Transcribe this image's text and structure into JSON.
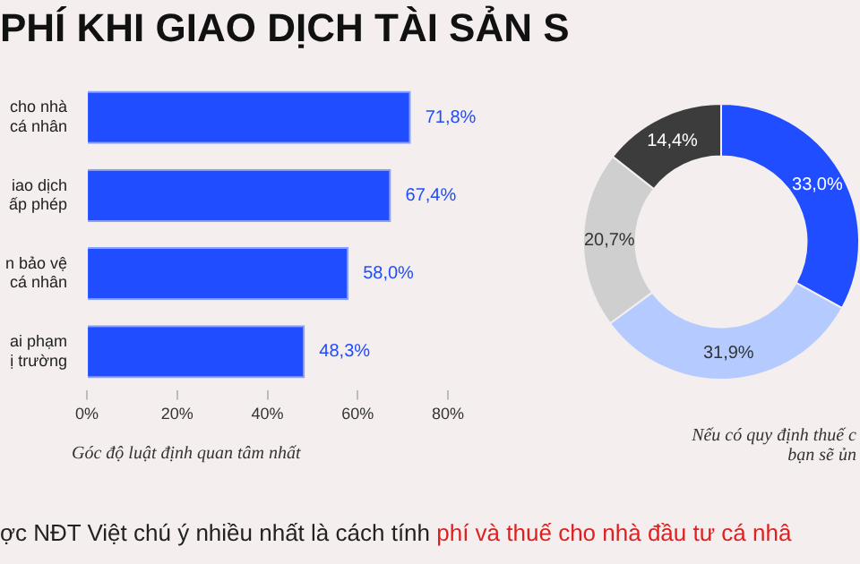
{
  "chart_data": [
    {
      "type": "bar",
      "orientation": "horizontal",
      "title": "PHÍ KHI GIAO DỊCH TÀI SẢN S",
      "categories": [
        "cho nhà\ncá nhân",
        "iao dịch\nấp phép",
        "n bảo vệ\ncá nhân",
        "ai phạm\nị trường"
      ],
      "values": [
        71.8,
        67.4,
        58.0,
        48.3
      ],
      "color": "#1f4dff",
      "value_labels": [
        "71,8%",
        "67,4%",
        "58,0%",
        "48,3%"
      ],
      "xlim": [
        0,
        80
      ],
      "xticks": [
        {
          "value": 0,
          "label": "0%"
        },
        {
          "value": 20,
          "label": "20%"
        },
        {
          "value": 40,
          "label": "40%"
        },
        {
          "value": 60,
          "label": "60%"
        },
        {
          "value": 80,
          "label": "80%"
        }
      ],
      "grid": false,
      "legend": false,
      "annotations": [
        "Góc độ luật định quan tâm nhất",
        "ợc NĐT Việt chú ý nhiều nhất là cách tính ",
        "phí và thuế cho nhà đầu tư cá nhâ"
      ]
    },
    {
      "type": "donut",
      "categories": [
        null,
        null,
        null,
        null
      ],
      "values": [
        33.0,
        31.9,
        20.7,
        14.4
      ],
      "colors": [
        "#1f4dff",
        "#b5cbff",
        "#cfcfcf",
        "#3c3c3c"
      ],
      "value_labels": [
        "33,0%",
        "31,9%",
        "20,7%",
        "14,4%"
      ],
      "legend": false,
      "annotations": [
        "Nếu có quy định thuế c\nbạn sẽ ủn"
      ]
    }
  ]
}
